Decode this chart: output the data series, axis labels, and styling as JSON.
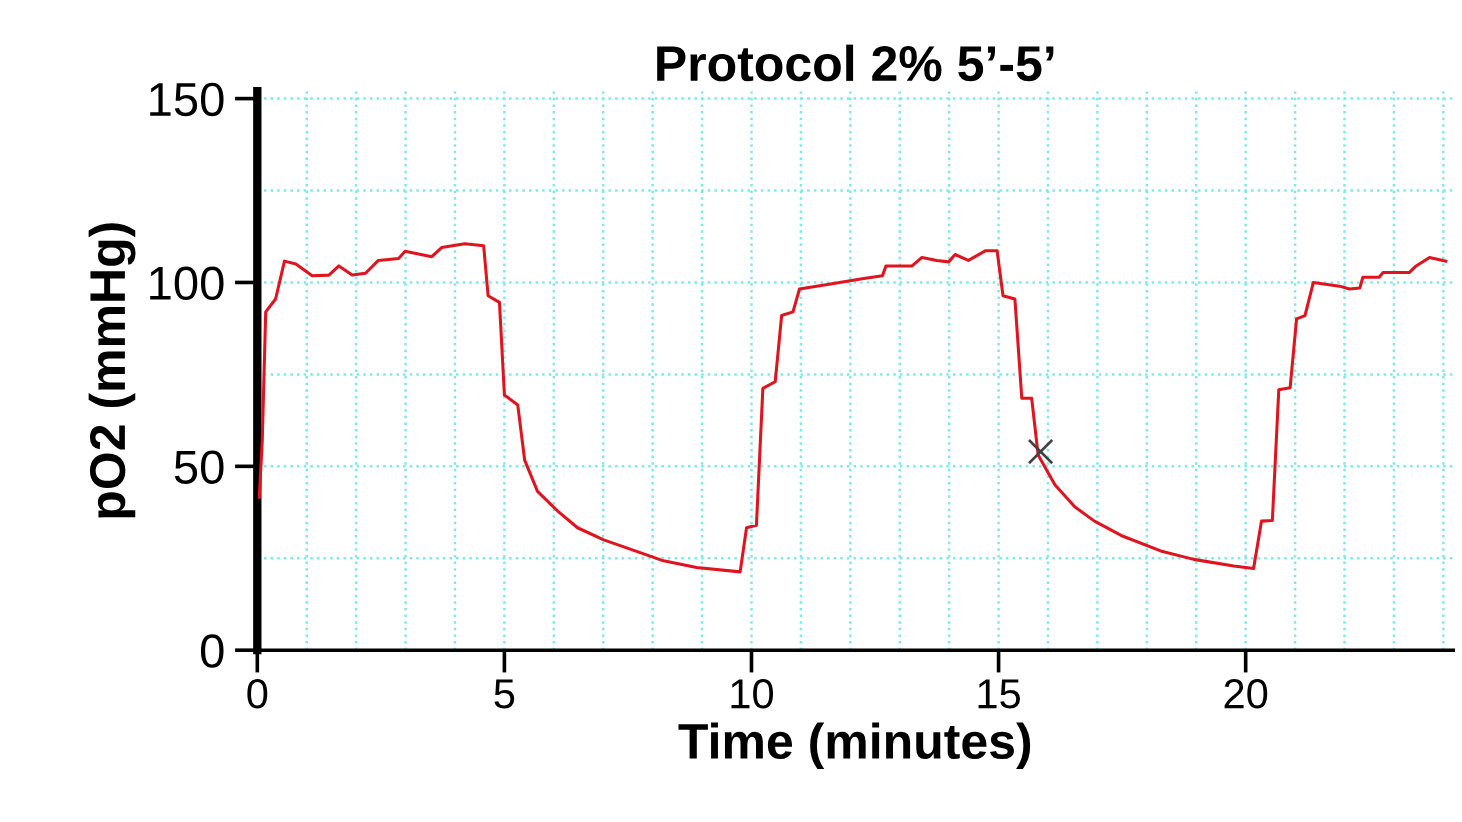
{
  "chart_data": {
    "type": "line",
    "title": "Protocol 2% 5’-5’",
    "xlabel": "Time (minutes)",
    "ylabel": "pO2 (mmHg)",
    "xlim": [
      0,
      24.2
    ],
    "xticks": [
      0,
      5,
      10,
      15,
      20
    ],
    "ylim": [
      0,
      152
    ],
    "yticks": [
      0,
      50,
      100,
      150
    ],
    "grid": true,
    "legend": false,
    "marker": "none",
    "line_style": "solid",
    "series": [
      {
        "color": "#e0141e",
        "x": [
          0.04,
          0.1,
          0.17,
          0.37,
          0.55,
          0.78,
          1.11,
          1.45,
          1.65,
          1.92,
          2.19,
          2.45,
          2.86,
          2.99,
          3.53,
          3.73,
          4.2,
          4.58,
          4.67,
          4.9,
          5.0,
          5.27,
          5.41,
          5.67,
          6.08,
          6.48,
          7.01,
          7.69,
          8.22,
          8.89,
          9.77,
          9.9,
          10.1,
          10.23,
          10.48,
          10.61,
          10.84,
          10.97,
          11.57,
          12.24,
          12.65,
          12.72,
          13.25,
          13.45,
          13.75,
          13.99,
          14.12,
          14.39,
          14.73,
          14.97,
          15.09,
          15.33,
          15.47,
          15.67,
          15.8,
          16.14,
          16.54,
          16.94,
          17.48,
          18.28,
          18.95,
          19.76,
          20.16,
          20.32,
          20.54,
          20.67,
          20.9,
          21.03,
          21.2,
          21.37,
          21.9,
          22.1,
          22.31,
          22.37,
          22.7,
          22.78,
          23.31,
          23.45,
          23.72,
          24.05
        ],
        "values": [
          41.6,
          57,
          92,
          95.5,
          105.8,
          105,
          101.8,
          102,
          104.5,
          102,
          102.5,
          106,
          106.5,
          108.5,
          107,
          109.5,
          110.5,
          110,
          96.4,
          94.6,
          69.4,
          66.7,
          51.7,
          43.2,
          37.8,
          33.3,
          30,
          26.8,
          24.3,
          22.5,
          21.3,
          33.3,
          34,
          71.2,
          73,
          91,
          92,
          98.2,
          99.5,
          101,
          101.8,
          104.5,
          104.5,
          106.8,
          106,
          105.6,
          107.6,
          106,
          108.6,
          108.6,
          96.4,
          95.5,
          68.5,
          68.5,
          53.1,
          45,
          39,
          35.1,
          31.2,
          27,
          24.7,
          22.9,
          22.2,
          35.1,
          35.3,
          70.8,
          71.4,
          90.1,
          91,
          100,
          99,
          98.2,
          98.5,
          101.4,
          101.4,
          102.7,
          102.7,
          104.5,
          106.8,
          105.8
        ]
      },
      {
        "type": "scatter",
        "color": "#404040",
        "marker": "cross",
        "x": [
          15.85
        ],
        "values": [
          54
        ]
      }
    ]
  }
}
